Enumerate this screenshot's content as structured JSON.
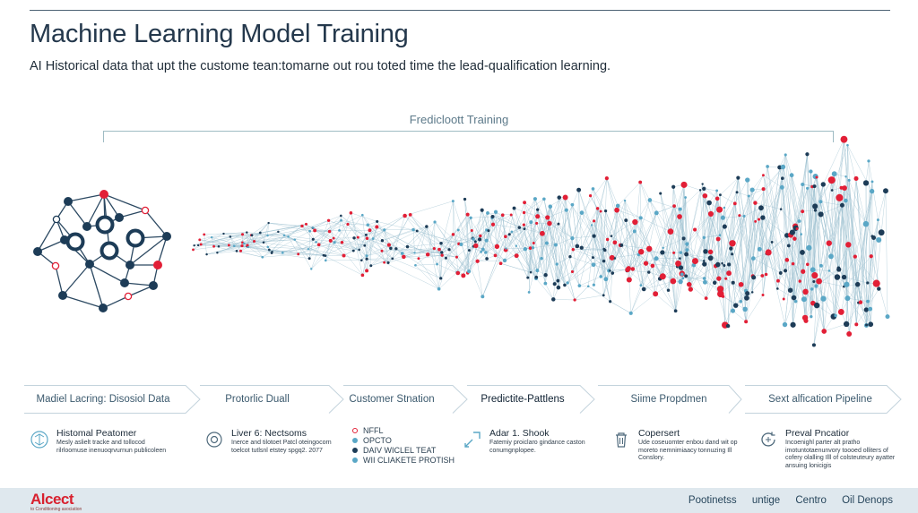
{
  "header": {
    "title": "Machine Learning Model Training",
    "subtitle": "AI Historical data that upt the custome tean:tomarne out rou toted time the lead-qualification learning."
  },
  "network": {
    "label": "Fredicloott Training",
    "colors": {
      "navy": "#1d3c57",
      "red": "#e21f36",
      "blue": "#5aa7c6",
      "line": "#9bbfd0"
    }
  },
  "pipeline": {
    "steps": [
      {
        "label": "Madiel Lacring: Disosiol Data"
      },
      {
        "label": "Protorlic Duall"
      },
      {
        "label": "Customer Stnation"
      },
      {
        "label": "Predictite-Pattlens"
      },
      {
        "label": "Siime Propdmen"
      },
      {
        "label": "Sext alfication Pipeline"
      }
    ]
  },
  "cards": [
    {
      "icon": "brain-network-icon",
      "title": "Histomal Peatomer",
      "desc": "Mesly aslielt tracke and tollocod rilrloomuse inenuoqrvurnun publicoleen"
    },
    {
      "icon": "target-icon",
      "title": "Liver 6: Nectsoms",
      "desc": "Inerce and tilotoet Patcl oteingocorn toelcot tutlsnl etstey spgq2. 2077"
    },
    {
      "icon": "trend-arrow-icon",
      "title": "Adar 1. Shook",
      "desc": "Fatemiy proiclaro gindance caston conumgnplopee."
    },
    {
      "icon": "trash-icon",
      "title": "Copersert",
      "desc": "Ude coseuomter enbou dand wit op moreto nemnimiaacy tonnuzing Ill Conslory."
    },
    {
      "icon": "refresh-icon",
      "title": "Preval Pncatior",
      "desc": "Incoenighl parter alt pratho imotuntotaenunvory toooed olliters of cofery olalling Illl of colsteuteury ayatter ansuing lonicigis"
    }
  ],
  "list": [
    {
      "label": "NFFL",
      "color": "#e21f36"
    },
    {
      "label": "OPCTO",
      "color": "#5aa7c6"
    },
    {
      "label": "DAIV WICLEL TEAT",
      "color": "#1d3c57"
    },
    {
      "label": "WII CLIAKETE PROTISH",
      "color": "#5aa7c6"
    }
  ],
  "footer": {
    "logo": "Alcect",
    "tagline": "to Conditioning asociation",
    "links": [
      "Pootinetss",
      "untige",
      "Centro",
      "Oil Denops"
    ]
  }
}
